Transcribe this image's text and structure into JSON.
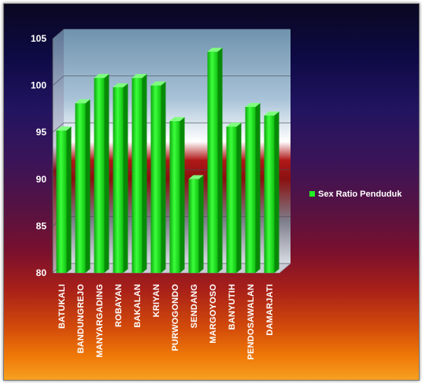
{
  "chart_data": {
    "type": "bar",
    "categories": [
      "BATUKALI",
      "BANDUNGREJO",
      "MANYARGADING",
      "ROBAYAN",
      "BAKALAN",
      "KRIYAN",
      "PURWOGONDO",
      "SENDANG",
      "MARGOYOSO",
      "BANYUTIH",
      "PENDOSAWALAN",
      "DAMARJATI"
    ],
    "series": [
      {
        "name": "Sex Ratio Penduduk",
        "values": [
          95.2,
          98.1,
          100.8,
          99.8,
          100.8,
          100.0,
          96.2,
          90.0,
          103.6,
          95.6,
          97.7,
          96.8
        ],
        "color": "#22ee22"
      }
    ],
    "title": "",
    "xlabel": "",
    "ylabel": "",
    "ylim": [
      80,
      105
    ],
    "yticks": [
      80,
      85,
      90,
      95,
      100,
      105
    ],
    "grid": true,
    "legend": "right"
  }
}
